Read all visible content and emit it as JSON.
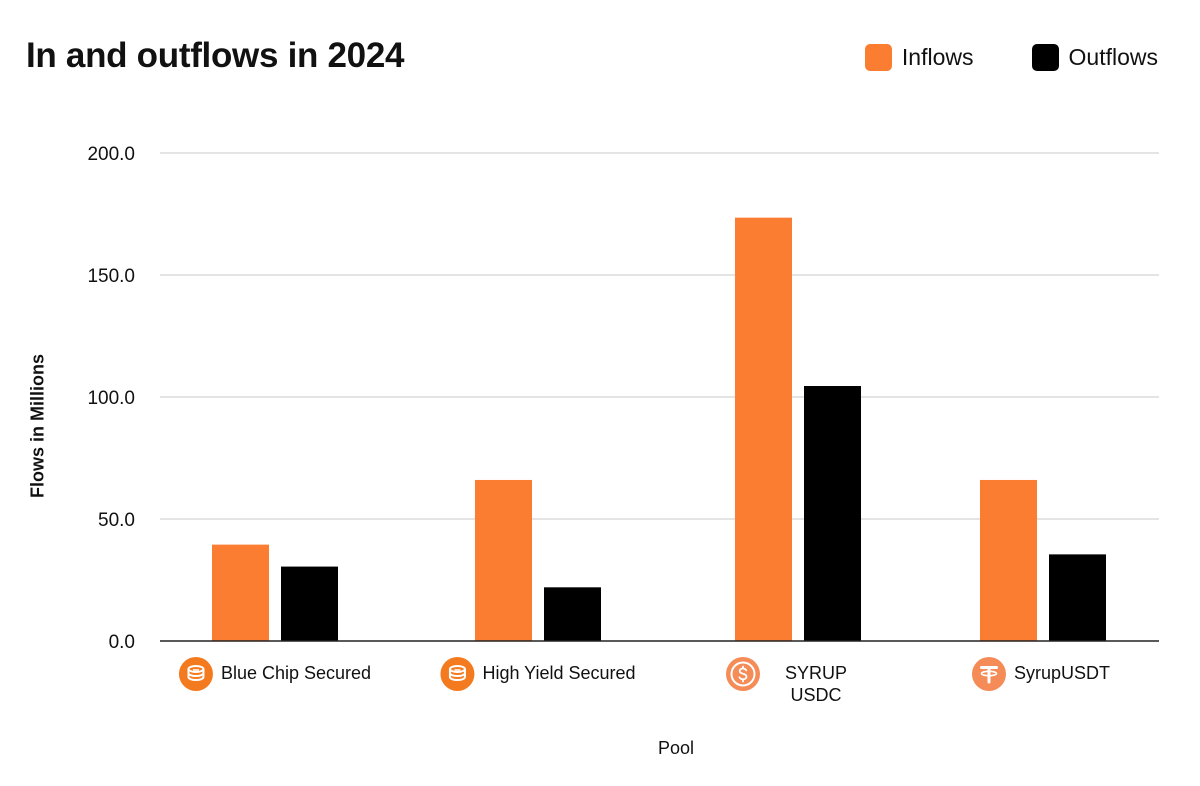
{
  "title": "In and outflows in 2024",
  "legend": [
    {
      "label": "Inflows",
      "color": "#FA7D32"
    },
    {
      "label": "Outflows",
      "color": "#000000"
    }
  ],
  "chart_data": {
    "type": "bar",
    "title": "In and outflows in 2024",
    "xlabel": "Pool",
    "ylabel": "Flows in Millions",
    "ylim": [
      0,
      200
    ],
    "yticks": [
      0,
      50,
      100,
      150,
      200
    ],
    "ytick_labels": [
      "0.0",
      "50.0",
      "100.0",
      "150.0",
      "200.0"
    ],
    "grid": true,
    "legend_position": "top-right",
    "categories": [
      "Blue Chip Secured",
      "High Yield Secured",
      "SYRUP USDC",
      "SyrupUSDT"
    ],
    "category_icons": [
      "coins-icon",
      "coins-icon",
      "usdc-icon",
      "tether-icon"
    ],
    "series": [
      {
        "name": "Inflows",
        "color": "#FA7D32",
        "values": [
          39.5,
          66.0,
          173.5,
          66.0
        ]
      },
      {
        "name": "Outflows",
        "color": "#000000",
        "values": [
          30.5,
          22.0,
          104.5,
          35.5
        ]
      }
    ]
  }
}
